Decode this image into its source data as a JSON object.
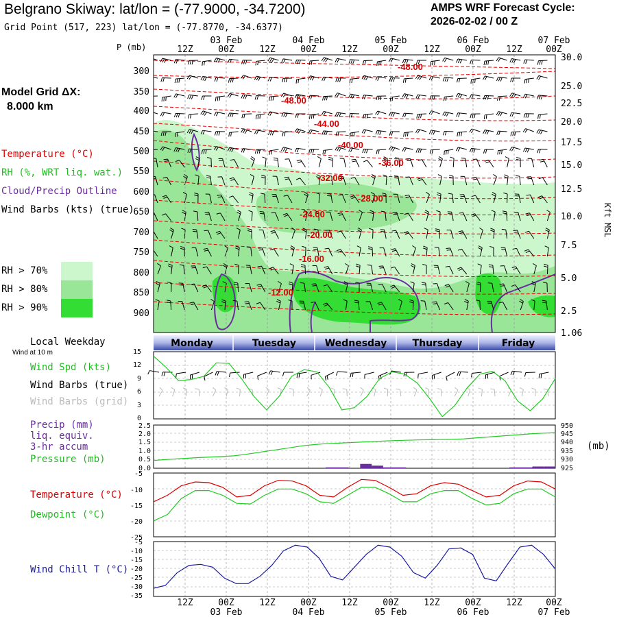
{
  "header": {
    "title": "Belgrano Skiway:  lat/lon = (-77.9000, -34.7200)",
    "grid_point": "Grid Point (517, 223) lat/lon = (-77.8770, -34.6377)",
    "cycle_line1": "AMPS WRF Forecast Cycle:",
    "cycle_line2": "2026-02-02 / 00  Z",
    "model_grid_label": "Model Grid ΔX:",
    "model_grid_value": "8.000 km"
  },
  "legend": {
    "temperature": "Temperature (°C)",
    "rh": "RH (%, WRT liq. wat.)",
    "cloud": "Cloud/Precip Outline",
    "wind_barbs": "Wind Barbs (kts) (true)",
    "rh70": "RH > 70%",
    "rh80": "RH > 80%",
    "rh90": "RH > 90%",
    "colors": {
      "rh70": "#ccf7cc",
      "rh80": "#99e699",
      "rh90": "#33dd33",
      "temp": "#dd0000",
      "cloud": "#6a2d9f"
    }
  },
  "time_axis": {
    "top_hours": [
      "12Z",
      "00Z",
      "12Z",
      "00Z",
      "12Z",
      "00Z",
      "12Z",
      "00Z",
      "12Z",
      "00Z"
    ],
    "dates": [
      "03 Feb",
      "04 Feb",
      "05 Feb",
      "06 Feb",
      "07 Feb"
    ],
    "weekdays": [
      "Monday",
      "Tuesday",
      "Wednesday",
      "Thursday",
      "Friday"
    ],
    "local_weekday_label": "Local Weekday",
    "wind_at_10m": "Wind at 10 m"
  },
  "chart_data": [
    {
      "type": "contour",
      "name": "cross-section",
      "y_left_label": "P (mb)",
      "pressure_ticks": [
        "300",
        "350",
        "400",
        "450",
        "500",
        "550",
        "600",
        "650",
        "700",
        "750",
        "800",
        "850",
        "900"
      ],
      "kft_ticks": [
        "30.0",
        "25.0",
        "22.5",
        "20.0",
        "17.5",
        "15.0",
        "12.5",
        "10.0",
        "7.5",
        "5.0",
        "2.5",
        "1.06"
      ],
      "y_right_label": "Kft MSL",
      "temp_contour_labels": [
        "-48.00",
        "-48.00",
        "-44.00",
        "-40.00",
        "-36.00",
        "-32.00",
        "-28.00",
        "-24.00",
        "-20.00",
        "-16.00",
        "-12.00"
      ]
    },
    {
      "type": "line",
      "name": "wind-speed",
      "labels": {
        "spd": "Wind Spd (kts)",
        "barbs_true": "Wind Barbs (true)",
        "barbs_grid": "Wind Barbs (grid)"
      },
      "y_ticks": [
        "15",
        "12",
        "9",
        "6",
        "3",
        "0"
      ],
      "ylim": [
        0,
        15
      ],
      "values": [
        14,
        11.5,
        8.5,
        8.8,
        9.5,
        12.5,
        12.4,
        9,
        5,
        2,
        5,
        9.5,
        11,
        10.5,
        7,
        2,
        2.5,
        5,
        9,
        10.5,
        10,
        8,
        4.5,
        0.5,
        3,
        7,
        10,
        10.6,
        8.5,
        4,
        1.8,
        4.5,
        9
      ]
    },
    {
      "type": "line",
      "name": "precip-pressure",
      "labels": {
        "precip": "Precip (mm)",
        "liq": "liq. equiv.",
        "accum": "3-hr accum",
        "pressure": "Pressure (mb)",
        "mb": "(mb)"
      },
      "precip_ticks": [
        "2.5",
        "2.0",
        "1.5",
        "1.0",
        "0.5",
        "0.0"
      ],
      "pressure_ticks": [
        "950",
        "945",
        "940",
        "935",
        "930",
        "925"
      ],
      "precip_lim": [
        0,
        2.5
      ],
      "pressure_lim": [
        925,
        950
      ],
      "pressure": [
        929.5,
        930,
        930.4,
        930.8,
        931.2,
        931.5,
        931.8,
        932.2,
        933,
        934,
        935,
        936,
        937,
        938,
        938.7,
        939.2,
        939.5,
        939.8,
        940.1,
        940.4,
        940.7,
        941,
        941.2,
        941.4,
        941.5,
        941.6,
        941.7,
        942,
        942.5,
        943,
        943.5,
        944,
        944.5,
        945,
        945.3,
        945.6
      ],
      "precip": [
        0,
        0,
        0,
        0,
        0,
        0,
        0,
        0,
        0,
        0,
        0,
        0,
        0,
        0,
        0,
        0.05,
        0.05,
        0,
        0.25,
        0.15,
        0.05,
        0.05,
        0,
        0,
        0,
        0,
        0,
        0,
        0,
        0,
        0,
        0.05,
        0.05,
        0.1,
        0.1
      ]
    },
    {
      "type": "line",
      "name": "temp-dewpoint",
      "labels": {
        "temp": "Temperature (°C)",
        "dew": "Dewpoint (°C)"
      },
      "y_ticks": [
        "-5",
        "-10",
        "-15",
        "-20",
        "-25"
      ],
      "ylim": [
        -25,
        -5
      ],
      "temperature": [
        -14,
        -12,
        -9,
        -7.8,
        -8,
        -9.5,
        -12.5,
        -12,
        -9,
        -7.3,
        -7.5,
        -9,
        -12,
        -12.5,
        -9.5,
        -7,
        -7.3,
        -9.5,
        -12,
        -11.5,
        -9,
        -8,
        -8.5,
        -10.5,
        -12.5,
        -12,
        -9,
        -7.5,
        -7.8,
        -10
      ],
      "dewpoint": [
        -20,
        -18,
        -13,
        -10.5,
        -10.5,
        -12,
        -14.5,
        -14.7,
        -12,
        -10,
        -10,
        -11.5,
        -14,
        -14.5,
        -12,
        -9.5,
        -9.5,
        -11.5,
        -14,
        -14,
        -11.5,
        -10.5,
        -10.5,
        -13,
        -15,
        -14.5,
        -11.5,
        -10,
        -10,
        -12.5
      ]
    },
    {
      "type": "line",
      "name": "wind-chill",
      "labels": {
        "wc": "Wind Chill T (°C)"
      },
      "y_ticks": [
        "-5",
        "-10",
        "-15",
        "-20",
        "-25",
        "-30",
        "-35"
      ],
      "ylim": [
        -35,
        -5
      ],
      "values": [
        -30.5,
        -29,
        -22,
        -18,
        -17.5,
        -19,
        -25,
        -28,
        -28,
        -24,
        -18,
        -10,
        -7,
        -8,
        -14,
        -24,
        -26,
        -19,
        -12,
        -7,
        -8,
        -13,
        -22,
        -25,
        -18,
        -9,
        -8.5,
        -12,
        -25,
        -26.5,
        -17,
        -8,
        -7,
        -12,
        -20
      ]
    }
  ]
}
